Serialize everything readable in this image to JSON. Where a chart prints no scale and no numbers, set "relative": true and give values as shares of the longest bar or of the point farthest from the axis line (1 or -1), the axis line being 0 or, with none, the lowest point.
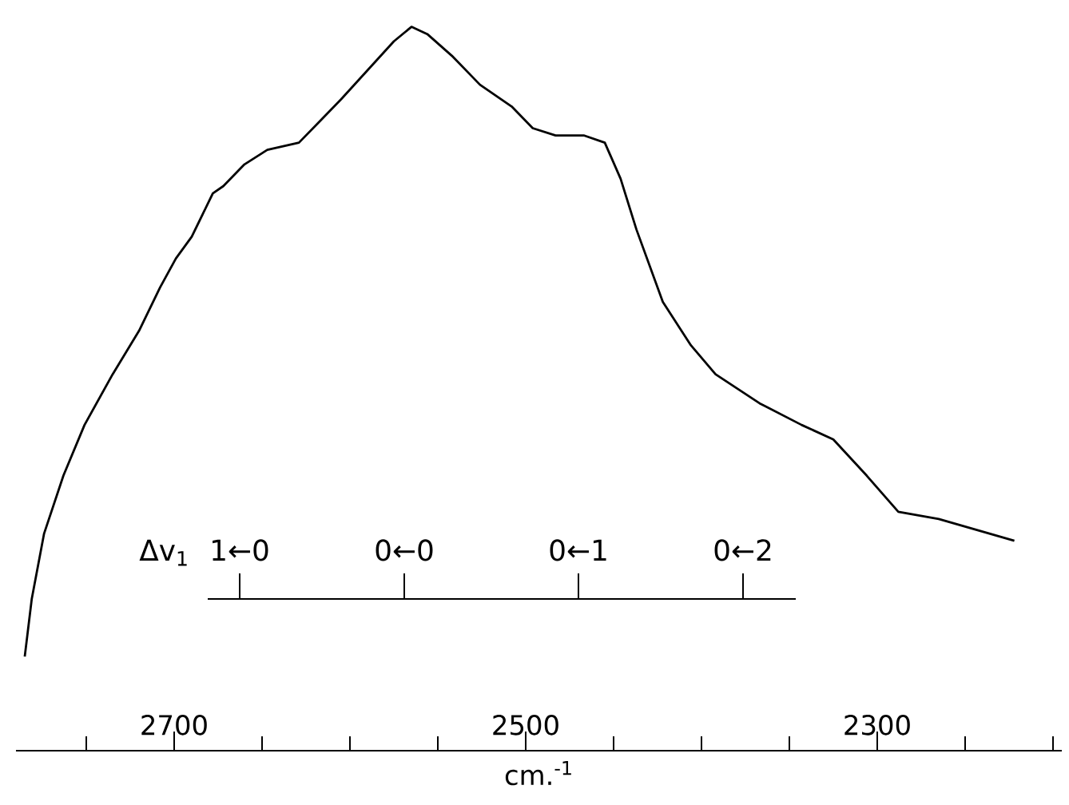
{
  "chart_data": {
    "type": "line",
    "relative": true,
    "xlabel": "cm.$^{-1}$",
    "xlim": [
      2790,
      2195
    ],
    "xticks": [
      {
        "value": 2750,
        "label": null
      },
      2700,
      {
        "value": 2650,
        "label": null
      },
      {
        "value": 2600,
        "label": null
      },
      {
        "value": 2550,
        "label": null
      },
      2500,
      {
        "value": 2450,
        "label": null
      },
      {
        "value": 2400,
        "label": null
      },
      {
        "value": 2350,
        "label": null
      },
      2300,
      {
        "value": 2250,
        "label": null
      },
      {
        "value": 2200,
        "label": null
      }
    ],
    "annotations": [
      "Δv$_{1}$",
      "1←0",
      "0←0",
      "0←1",
      "0←2"
    ],
    "x": [
      2785,
      2781,
      2774,
      2763,
      2751,
      2735,
      2720,
      2708,
      2699,
      2690,
      2678,
      2672,
      2660,
      2647,
      2629,
      2617,
      2605,
      2590,
      2575,
      2565,
      2556,
      2542,
      2526,
      2508,
      2496,
      2483,
      2467,
      2455,
      2446,
      2437,
      2422,
      2406,
      2392,
      2367,
      2343,
      2325,
      2306,
      2288,
      2265,
      2222
    ],
    "series": [
      {
        "color": "#000000",
        "values": [
          0.13,
          0.21,
          0.3,
          0.38,
          0.45,
          0.52,
          0.58,
          0.64,
          0.68,
          0.71,
          0.77,
          0.78,
          0.81,
          0.83,
          0.84,
          0.87,
          0.9,
          0.94,
          0.98,
          1.0,
          0.99,
          0.96,
          0.92,
          0.89,
          0.86,
          0.85,
          0.85,
          0.84,
          0.79,
          0.72,
          0.62,
          0.56,
          0.52,
          0.48,
          0.45,
          0.43,
          0.38,
          0.33,
          0.32,
          0.29
        ]
      }
    ]
  }
}
